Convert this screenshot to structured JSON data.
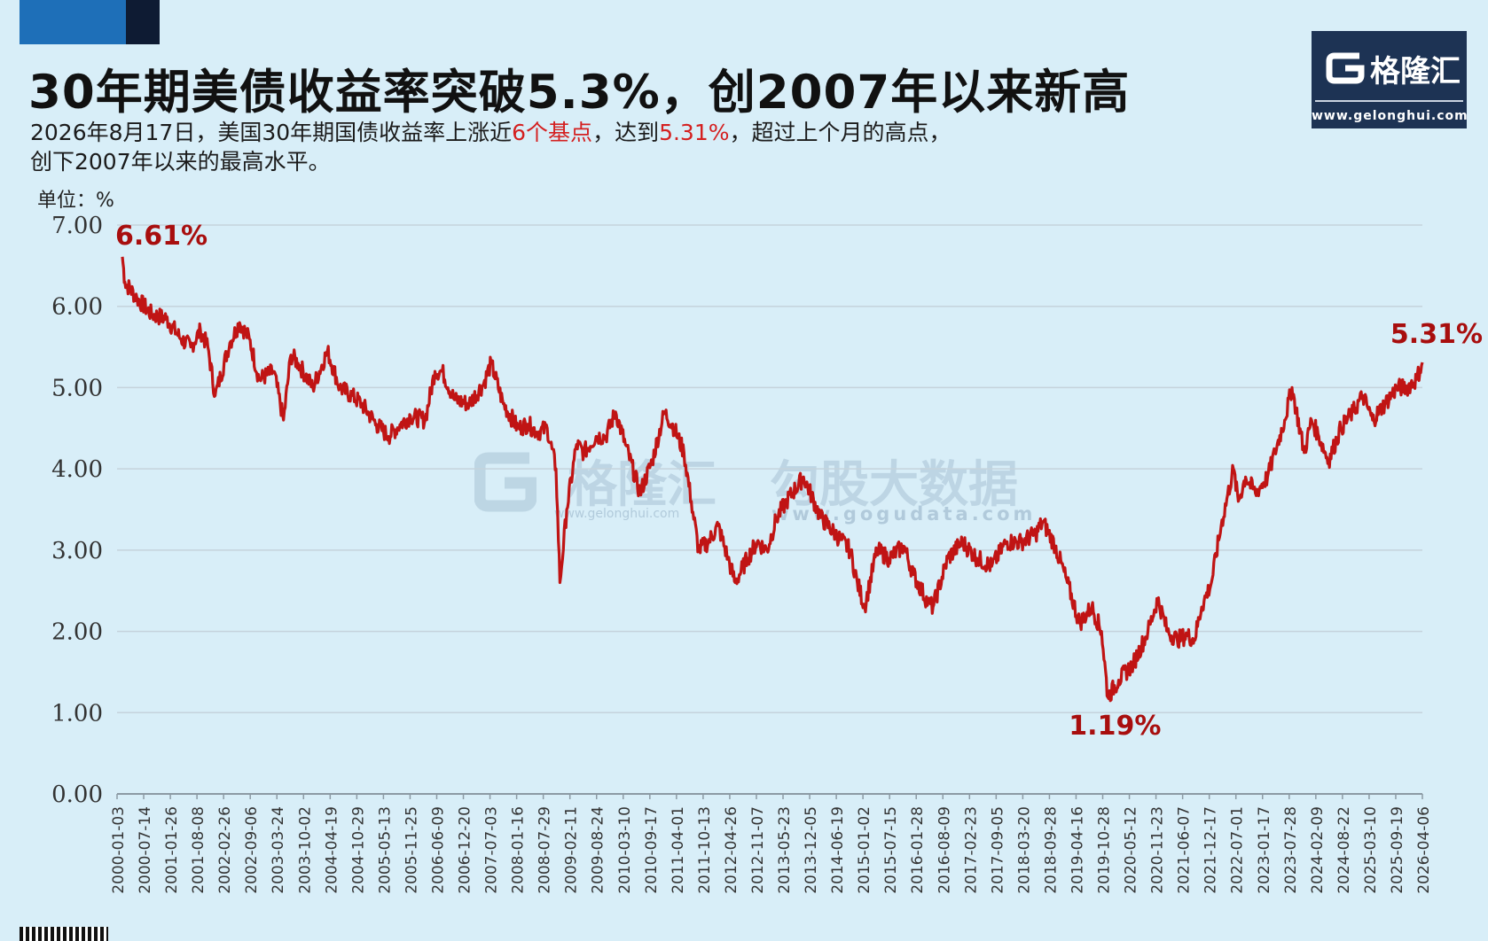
{
  "header": {
    "title": "30年期美债收益率突破5.3%，创2007年以来新高",
    "subtitle_a": "2026年8月17日，美国30年期国债收益率上涨近",
    "subtitle_red1": "6个基点",
    "subtitle_b": "，达到",
    "subtitle_red2": "5.31%",
    "subtitle_c": "，超过上个月的高点，",
    "subtitle_line2": "创下2007年以来的最高水平。",
    "unit": "单位：%"
  },
  "logo": {
    "brand": "格隆汇",
    "url": "www.gelonghui.com"
  },
  "watermark": {
    "brand": "格隆汇",
    "brand_url": "www.gelonghui.com",
    "data_brand": "勾股大数据",
    "data_url": "www.gogudata.com"
  },
  "colors": {
    "line": "#c01414",
    "annotation": "#a80e0e",
    "background": "#d8eef8",
    "grid": "#c5d3dc"
  },
  "chart_data": {
    "type": "line",
    "title": "30年期美债收益率突破5.3%，创2007年以来新高",
    "ylabel": "单位：%",
    "ylim": [
      0,
      7
    ],
    "yticks": [
      "0.00",
      "1.00",
      "2.00",
      "3.00",
      "4.00",
      "5.00",
      "6.00",
      "7.00"
    ],
    "grid": true,
    "xticks": [
      "2000-01-03",
      "2000-07-14",
      "2001-01-26",
      "2001-08-08",
      "2002-02-26",
      "2002-09-06",
      "2003-03-24",
      "2003-10-02",
      "2004-04-19",
      "2004-10-29",
      "2005-05-13",
      "2005-11-25",
      "2006-06-09",
      "2006-12-20",
      "2007-07-03",
      "2008-01-16",
      "2008-07-29",
      "2009-02-11",
      "2009-08-24",
      "2010-03-10",
      "2010-09-17",
      "2011-04-01",
      "2011-10-13",
      "2012-04-26",
      "2012-11-07",
      "2013-05-23",
      "2013-12-05",
      "2014-06-19",
      "2015-01-02",
      "2015-07-15",
      "2016-01-28",
      "2016-08-09",
      "2017-02-23",
      "2017-09-05",
      "2018-03-20",
      "2018-09-28",
      "2019-04-16",
      "2019-10-28",
      "2020-05-12",
      "2020-11-23",
      "2021-06-07",
      "2021-12-17",
      "2022-07-01",
      "2023-01-17",
      "2023-07-28",
      "2024-02-09",
      "2024-08-22",
      "2025-03-10",
      "2025-09-19",
      "2026-04-06"
    ],
    "x": [
      2000.0,
      2000.05,
      2000.3,
      2000.6,
      2000.9,
      2001.2,
      2001.4,
      2001.6,
      2001.75,
      2001.9,
      2002.2,
      2002.4,
      2002.6,
      2002.8,
      2003.1,
      2003.3,
      2003.45,
      2003.6,
      2003.9,
      2004.2,
      2004.45,
      2004.7,
      2004.9,
      2005.2,
      2005.45,
      2005.7,
      2005.9,
      2006.2,
      2006.4,
      2006.55,
      2006.8,
      2007.1,
      2007.4,
      2007.55,
      2007.8,
      2008.1,
      2008.3,
      2008.5,
      2008.7,
      2008.88,
      2008.96,
      2009.1,
      2009.3,
      2009.45,
      2009.7,
      2009.9,
      2010.1,
      2010.3,
      2010.6,
      2010.85,
      2011.1,
      2011.3,
      2011.5,
      2011.65,
      2011.8,
      2012.0,
      2012.2,
      2012.4,
      2012.55,
      2012.8,
      2013.0,
      2013.2,
      2013.4,
      2013.6,
      2013.95,
      2014.3,
      2014.6,
      2014.9,
      2015.05,
      2015.2,
      2015.45,
      2015.7,
      2016.0,
      2016.2,
      2016.5,
      2016.6,
      2016.9,
      2017.2,
      2017.5,
      2017.8,
      2018.1,
      2018.4,
      2018.7,
      2018.85,
      2019.1,
      2019.35,
      2019.6,
      2019.85,
      2020.05,
      2020.18,
      2020.4,
      2020.7,
      2021.0,
      2021.2,
      2021.4,
      2021.6,
      2021.8,
      2021.95,
      2022.1,
      2022.3,
      2022.5,
      2022.75,
      2022.85,
      2023.0,
      2023.2,
      2023.45,
      2023.6,
      2023.8,
      2023.95,
      2024.2,
      2024.35,
      2024.5,
      2024.7,
      2024.95,
      2025.2,
      2025.4,
      2025.6,
      2025.85,
      2026.1,
      2026.3,
      2026.5,
      2026.62
    ],
    "series": [
      {
        "values": [
          6.61,
          6.3,
          6.1,
          5.9,
          5.85,
          5.6,
          5.5,
          5.7,
          5.5,
          4.9,
          5.55,
          5.8,
          5.6,
          5.1,
          5.2,
          4.6,
          5.4,
          5.3,
          5.0,
          5.45,
          5.0,
          4.9,
          4.8,
          4.55,
          4.4,
          4.55,
          4.65,
          4.6,
          5.2,
          5.2,
          4.85,
          4.8,
          5.05,
          5.3,
          4.8,
          4.5,
          4.55,
          4.45,
          4.5,
          4.0,
          2.6,
          3.5,
          4.3,
          4.2,
          4.4,
          4.4,
          4.7,
          4.3,
          3.7,
          4.1,
          4.7,
          4.5,
          4.2,
          3.6,
          3.0,
          3.1,
          3.3,
          2.9,
          2.6,
          2.9,
          3.1,
          3.0,
          3.4,
          3.6,
          3.9,
          3.4,
          3.2,
          3.0,
          2.6,
          2.3,
          3.0,
          2.9,
          3.05,
          2.7,
          2.35,
          2.3,
          2.9,
          3.1,
          2.9,
          2.8,
          3.1,
          3.1,
          3.2,
          3.35,
          3.05,
          2.6,
          2.1,
          2.3,
          2.0,
          1.19,
          1.4,
          1.6,
          2.0,
          2.4,
          2.0,
          1.9,
          1.95,
          1.9,
          2.3,
          2.6,
          3.3,
          4.0,
          3.6,
          3.9,
          3.7,
          3.9,
          4.2,
          4.6,
          5.0,
          4.2,
          4.6,
          4.4,
          4.1,
          4.5,
          4.7,
          4.9,
          4.6,
          4.8,
          5.0,
          5.0,
          5.1,
          5.31
        ]
      }
    ],
    "annotations": [
      {
        "label": "6.61%",
        "x": 2000.0,
        "y": 6.61
      },
      {
        "label": "1.19%",
        "x": 2020.18,
        "y": 1.19
      },
      {
        "label": "5.31%",
        "x": 2026.62,
        "y": 5.31
      }
    ]
  }
}
